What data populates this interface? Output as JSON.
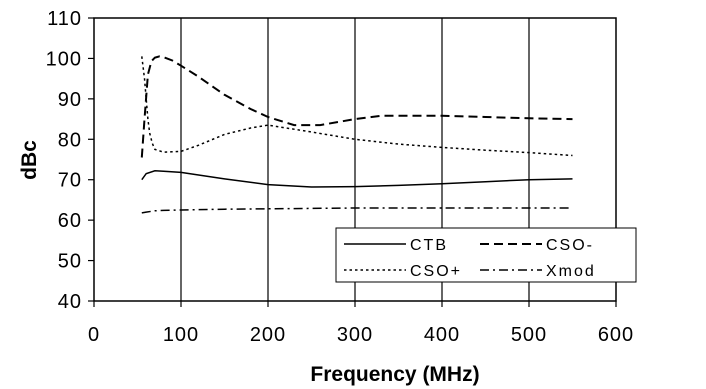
{
  "chart_data": {
    "type": "line",
    "title": "",
    "xlabel": "Frequency (MHz)",
    "ylabel": "dBc",
    "xlim": [
      0,
      600
    ],
    "ylim": [
      40,
      110
    ],
    "xticks": [
      0,
      100,
      200,
      300,
      400,
      500,
      600
    ],
    "yticks": [
      40,
      50,
      60,
      70,
      80,
      90,
      100,
      110
    ],
    "grid": "vertical",
    "legend": "bottom-right",
    "series": [
      {
        "name": "CTB",
        "style": "solid",
        "x": [
          55,
          60,
          70,
          80,
          100,
          150,
          200,
          250,
          300,
          350,
          400,
          450,
          500,
          550
        ],
        "y": [
          70,
          71.5,
          72.2,
          72.1,
          71.8,
          70.2,
          68.8,
          68.2,
          68.3,
          68.6,
          69,
          69.5,
          70,
          70.2
        ]
      },
      {
        "name": "CSO-",
        "style": "dash",
        "x": [
          55,
          58,
          62,
          66,
          70,
          75,
          80,
          90,
          100,
          120,
          150,
          180,
          200,
          230,
          260,
          300,
          330,
          400,
          450,
          500,
          550
        ],
        "y": [
          75.5,
          85,
          96,
          99.3,
          100.2,
          100.5,
          100.3,
          99.5,
          98.2,
          95.5,
          91,
          87.5,
          85.5,
          83.5,
          83.5,
          85,
          85.8,
          85.8,
          85.5,
          85.2,
          85
        ]
      },
      {
        "name": "CSO+",
        "style": "dot",
        "x": [
          55,
          58,
          60,
          62,
          64,
          67,
          70,
          80,
          100,
          120,
          150,
          180,
          200,
          250,
          300,
          350,
          400,
          450,
          500,
          550
        ],
        "y": [
          100.5,
          95,
          90,
          85,
          81.5,
          79,
          77.5,
          76.8,
          77,
          78.5,
          81.2,
          82.8,
          83.5,
          81.8,
          80,
          78.8,
          78,
          77.3,
          76.7,
          76
        ]
      },
      {
        "name": "Xmod",
        "style": "dashdot",
        "x": [
          55,
          60,
          70,
          80,
          100,
          150,
          200,
          250,
          300,
          350,
          400,
          450,
          500,
          550
        ],
        "y": [
          61.8,
          62,
          62.3,
          62.4,
          62.5,
          62.7,
          62.8,
          62.9,
          63,
          63,
          63,
          63,
          63,
          63
        ]
      }
    ]
  }
}
